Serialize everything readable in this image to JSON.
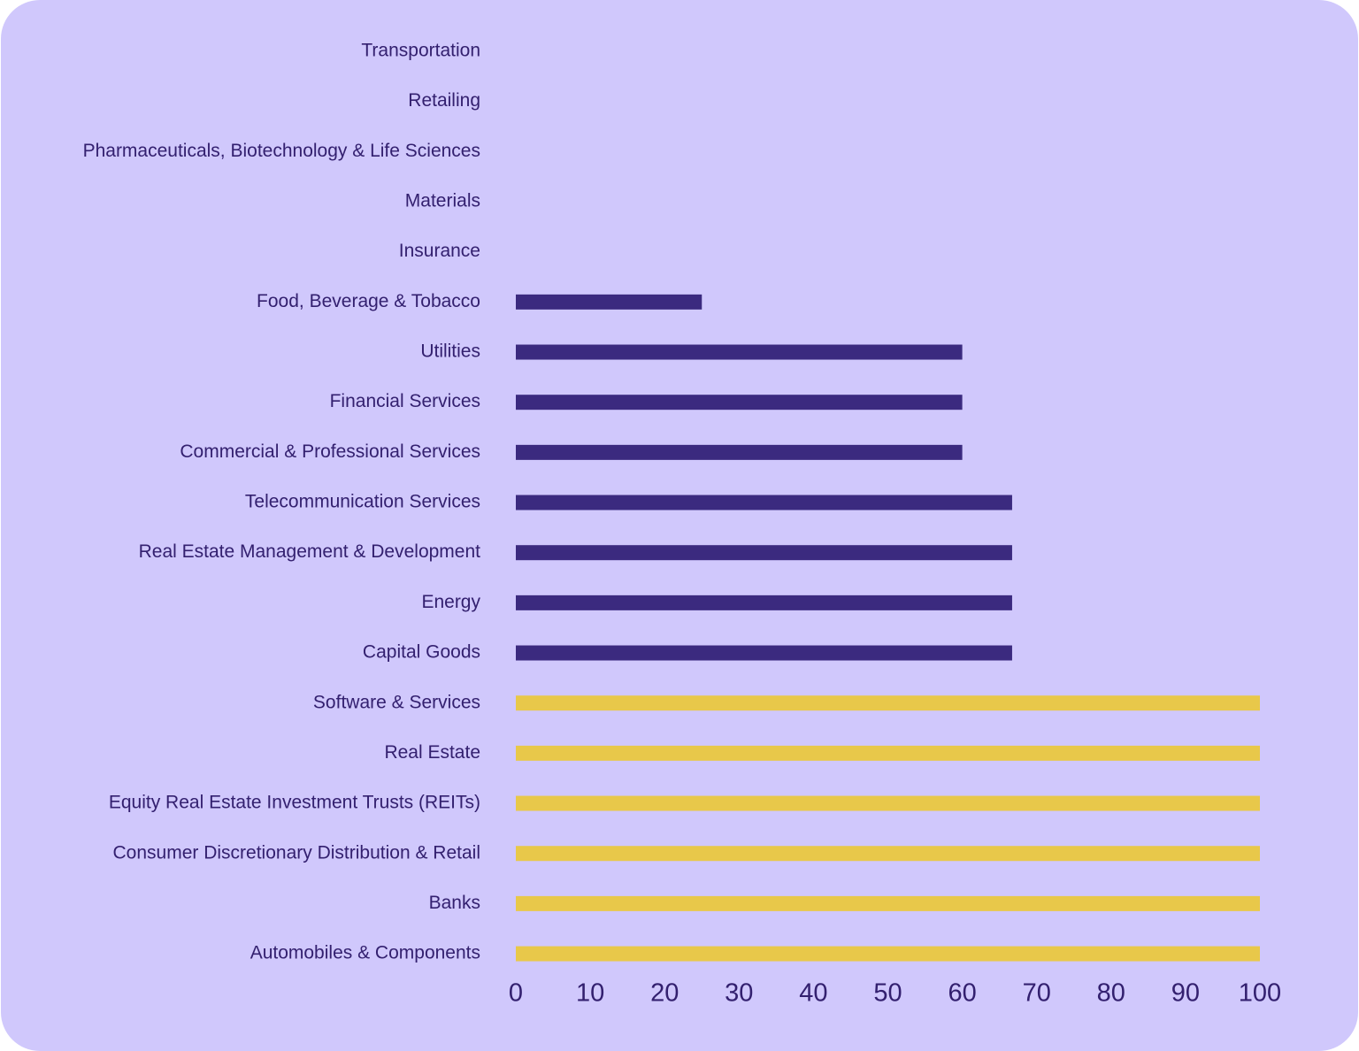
{
  "chart_data": {
    "type": "bar",
    "orientation": "horizontal",
    "categories": [
      "Transportation",
      "Retailing",
      "Pharmaceuticals, Biotechnology & Life Sciences",
      "Materials",
      "Insurance",
      "Food, Beverage & Tobacco",
      "Utilities",
      "Financial Services",
      "Commercial & Professional Services",
      "Telecommunication Services",
      "Real Estate Management & Development",
      "Energy",
      "Capital Goods",
      "Software & Services",
      "Real Estate",
      "Equity Real Estate Investment Trusts (REITs)",
      "Consumer Discretionary Distribution & Retail",
      "Banks",
      "Automobiles & Components"
    ],
    "values": [
      0,
      0,
      0,
      0,
      0,
      25,
      60,
      60,
      60,
      66.7,
      66.7,
      66.7,
      66.7,
      100,
      100,
      100,
      100,
      100,
      100
    ],
    "colors": [
      "#3b2a7f",
      "#3b2a7f",
      "#3b2a7f",
      "#3b2a7f",
      "#3b2a7f",
      "#3b2a7f",
      "#3b2a7f",
      "#3b2a7f",
      "#3b2a7f",
      "#3b2a7f",
      "#3b2a7f",
      "#3b2a7f",
      "#3b2a7f",
      "#e8c84a",
      "#e8c84a",
      "#e8c84a",
      "#e8c84a",
      "#e8c84a",
      "#e8c84a"
    ],
    "xlim": [
      0,
      100
    ],
    "xticks": [
      0,
      10,
      20,
      30,
      40,
      50,
      60,
      70,
      80,
      90,
      100
    ],
    "grid": false
  }
}
